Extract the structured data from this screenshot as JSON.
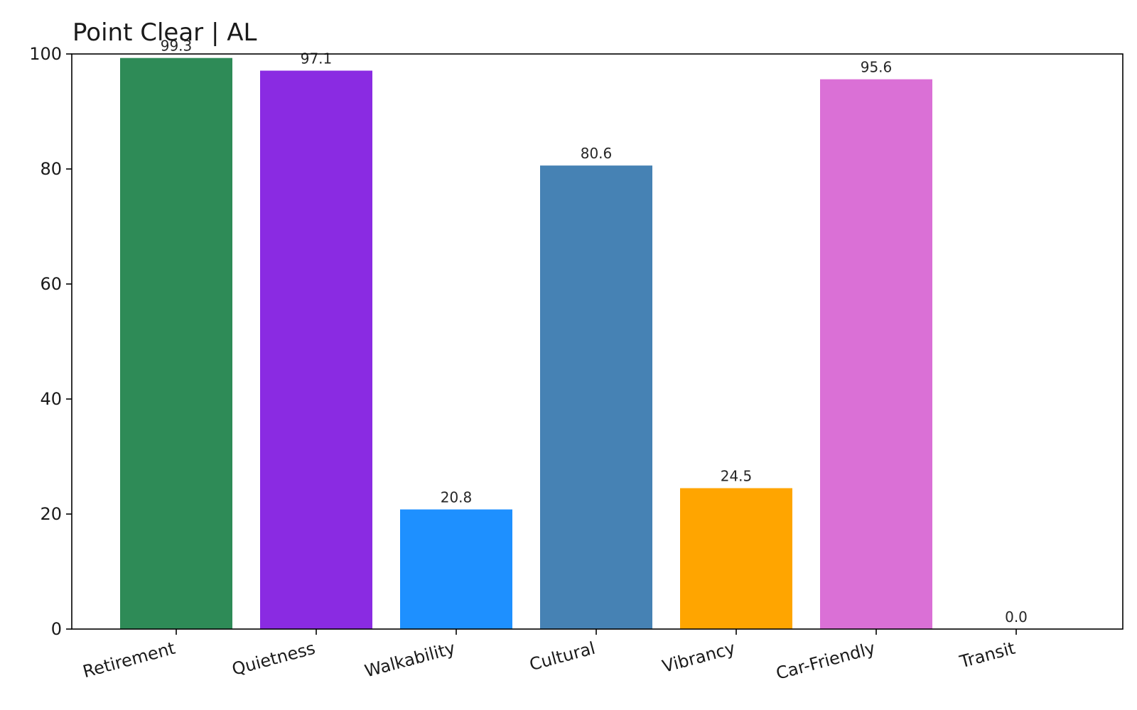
{
  "chart_data": {
    "type": "bar",
    "title": "Point Clear | AL",
    "xlabel": "",
    "ylabel": "",
    "categories": [
      "Retirement",
      "Quietness",
      "Walkability",
      "Cultural",
      "Vibrancy",
      "Car-Friendly",
      "Transit"
    ],
    "values": [
      99.3,
      97.1,
      20.8,
      80.6,
      24.5,
      95.6,
      0.0
    ],
    "value_labels": [
      "99.3",
      "97.1",
      "20.8",
      "80.6",
      "24.5",
      "95.6",
      "0.0"
    ],
    "colors": [
      "#2e8b57",
      "#8a2be2",
      "#1e90ff",
      "#4682b4",
      "#ffa500",
      "#da70d6",
      "#a9a9a9"
    ],
    "ylim": [
      0,
      100
    ],
    "yticks": [
      0,
      20,
      40,
      60,
      80,
      100
    ],
    "ytick_labels": [
      "0",
      "20",
      "40",
      "60",
      "80",
      "100"
    ],
    "grid": false,
    "legend": "none"
  }
}
